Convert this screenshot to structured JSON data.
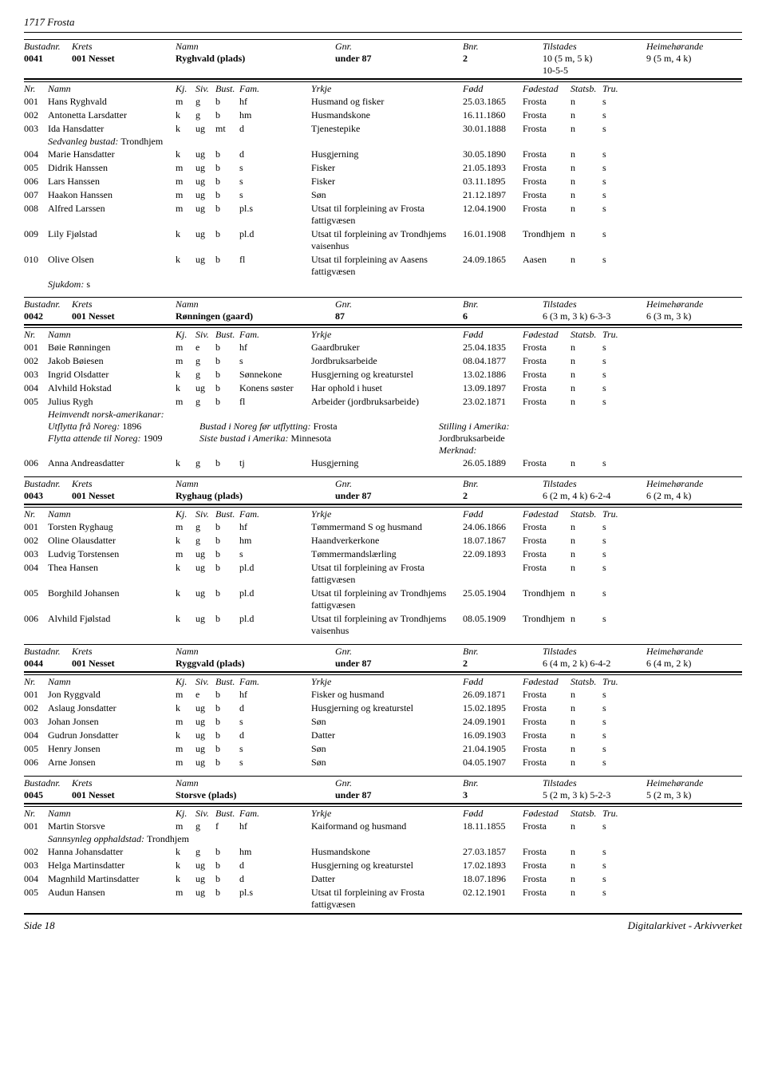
{
  "page_title": "1717 Frosta",
  "footer_left": "Side 18",
  "footer_right": "Digitalarkivet - Arkivverket",
  "bustad_header": [
    "Bustadnr.",
    "Krets",
    "Namn",
    "Gnr.",
    "Bnr.",
    "Tilstades",
    "Heimehørande"
  ],
  "person_header": [
    "Nr.",
    "Namn",
    "Kj.",
    "Siv.",
    "Bust.",
    "Fam.",
    "Yrkje",
    "Fødd",
    "Fødestad",
    "Statsb.",
    "Tru."
  ],
  "sjukdom_label": "Sjukdom:",
  "sjukdom_val": "s",
  "sedvanleg_label": "Sedvanleg bustad:",
  "sedvanleg_val": "Trondhjem",
  "sannsynleg_label": "Sannsynleg opphaldstad:",
  "sannsynleg_val": "Trondhjem",
  "emigrant_labels": {
    "heimvendt": "Heimvendt norsk-amerikanar:",
    "utflytta": "Utflytta frå Noreg:",
    "utflytta_val": "1896",
    "bustad_før": "Bustad i Noreg før utflytting:",
    "bustad_før_val": "Frosta",
    "stilling": "Stilling i Amerika:",
    "flytta": "Flytta attende til Noreg:",
    "flytta_val": "1909",
    "siste": "Siste bustad i Amerika:",
    "siste_val": "Minnesota",
    "jordbruk": "Jordbruksarbeide",
    "merknad": "Merknad:"
  },
  "sections": [
    {
      "bustad": [
        "0041",
        "001 Nesset",
        "Ryghvald (plads)",
        "under 87",
        "2",
        "10 (5 m, 5 k)",
        "9 (5 m, 4 k)"
      ],
      "bustad2": [
        "",
        "",
        "",
        "",
        "",
        "10-5-5",
        ""
      ],
      "persons": [
        [
          "001",
          "Hans Ryghvald",
          "m",
          "g",
          "b",
          "hf",
          "Husmand og fisker",
          "25.03.1865",
          "Frosta",
          "n",
          "s"
        ],
        [
          "002",
          "Antonetta Larsdatter",
          "k",
          "g",
          "b",
          "hm",
          "Husmandskone",
          "16.11.1860",
          "Frosta",
          "n",
          "s"
        ],
        [
          "003",
          "Ida Hansdatter",
          "k",
          "ug",
          "mt",
          "d",
          "Tjenestepike",
          "30.01.1888",
          "Frosta",
          "n",
          "s"
        ],
        [
          "",
          "__SEDVANLEG__",
          "",
          "",
          "",
          "",
          "",
          "",
          "",
          "",
          ""
        ],
        [
          "004",
          "Marie Hansdatter",
          "k",
          "ug",
          "b",
          "d",
          "Husgjerning",
          "30.05.1890",
          "Frosta",
          "n",
          "s"
        ],
        [
          "005",
          "Didrik Hanssen",
          "m",
          "ug",
          "b",
          "s",
          "Fisker",
          "21.05.1893",
          "Frosta",
          "n",
          "s"
        ],
        [
          "006",
          "Lars Hanssen",
          "m",
          "ug",
          "b",
          "s",
          "Fisker",
          "03.11.1895",
          "Frosta",
          "n",
          "s"
        ],
        [
          "007",
          "Haakon Hanssen",
          "m",
          "ug",
          "b",
          "s",
          "Søn",
          "21.12.1897",
          "Frosta",
          "n",
          "s"
        ],
        [
          "008",
          "Alfred Larssen",
          "m",
          "ug",
          "b",
          "pl.s",
          "Utsat til forpleining av Frosta fattigvæsen",
          "12.04.1900",
          "Frosta",
          "n",
          "s"
        ],
        [
          "009",
          "Lily Fjølstad",
          "k",
          "ug",
          "b",
          "pl.d",
          "Utsat til forpleining av Trondhjems vaisenhus",
          "16.01.1908",
          "Trondhjem",
          "n",
          "s"
        ],
        [
          "010",
          "Olive Olsen",
          "k",
          "ug",
          "b",
          "fl",
          "Utsat til forpleining av Aasens fattigvæsen",
          "24.09.1865",
          "Aasen",
          "n",
          "s"
        ]
      ],
      "sjukdom": true
    },
    {
      "bustad": [
        "0042",
        "001 Nesset",
        "Rønningen (gaard)",
        "87",
        "6",
        "6 (3 m, 3 k) 6-3-3",
        "6 (3 m, 3 k)"
      ],
      "persons": [
        [
          "001",
          "Bøie Rønningen",
          "m",
          "e",
          "b",
          "hf",
          "Gaardbruker",
          "25.04.1835",
          "Frosta",
          "n",
          "s"
        ],
        [
          "002",
          "Jakob Bøiesen",
          "m",
          "g",
          "b",
          "s",
          "Jordbruksarbeide",
          "08.04.1877",
          "Frosta",
          "n",
          "s"
        ],
        [
          "003",
          "Ingrid Olsdatter",
          "k",
          "g",
          "b",
          "Sønnekone",
          "Husgjerning og kreaturstel",
          "13.02.1886",
          "Frosta",
          "n",
          "s"
        ],
        [
          "004",
          "Alvhild Hokstad",
          "k",
          "ug",
          "b",
          "Konens søster",
          "Har ophold i huset",
          "13.09.1897",
          "Frosta",
          "n",
          "s"
        ],
        [
          "005",
          "Julius Rygh",
          "m",
          "g",
          "b",
          "fl",
          "Arbeider (jordbruksarbeide)",
          "23.02.1871",
          "Frosta",
          "n",
          "s"
        ]
      ],
      "emigrant": true,
      "persons2": [
        [
          "006",
          "Anna Andreasdatter",
          "k",
          "g",
          "b",
          "tj",
          "Husgjerning",
          "26.05.1889",
          "Frosta",
          "n",
          "s"
        ]
      ]
    },
    {
      "bustad": [
        "0043",
        "001 Nesset",
        "Ryghaug (plads)",
        "under 87",
        "2",
        "6 (2 m, 4 k) 6-2-4",
        "6 (2 m, 4 k)"
      ],
      "persons": [
        [
          "001",
          "Torsten Ryghaug",
          "m",
          "g",
          "b",
          "hf",
          "Tømmermand S og husmand",
          "24.06.1866",
          "Frosta",
          "n",
          "s"
        ],
        [
          "002",
          "Oline Olausdatter",
          "k",
          "g",
          "b",
          "hm",
          "Haandverkerkone",
          "18.07.1867",
          "Frosta",
          "n",
          "s"
        ],
        [
          "003",
          "Ludvig Torstensen",
          "m",
          "ug",
          "b",
          "s",
          "Tømmermandslærling",
          "22.09.1893",
          "Frosta",
          "n",
          "s"
        ],
        [
          "004",
          "Thea Hansen",
          "k",
          "ug",
          "b",
          "pl.d",
          "Utsat til forpleining av Frosta fattigvæsen",
          "",
          "Frosta",
          "n",
          "s"
        ],
        [
          "005",
          "Borghild Johansen",
          "k",
          "ug",
          "b",
          "pl.d",
          "Utsat til forpleining av Trondhjems fattigvæsen",
          "25.05.1904",
          "Trondhjem",
          "n",
          "s"
        ],
        [
          "006",
          "Alvhild Fjølstad",
          "k",
          "ug",
          "b",
          "pl.d",
          "Utsat til forpleining av Trondhjems vaisenhus",
          "08.05.1909",
          "Trondhjem",
          "n",
          "s"
        ]
      ]
    },
    {
      "bustad": [
        "0044",
        "001 Nesset",
        "Ryggvald (plads)",
        "under 87",
        "2",
        "6 (4 m, 2 k) 6-4-2",
        "6 (4 m, 2 k)"
      ],
      "persons": [
        [
          "001",
          "Jon Ryggvald",
          "m",
          "e",
          "b",
          "hf",
          "Fisker og husmand",
          "26.09.1871",
          "Frosta",
          "n",
          "s"
        ],
        [
          "002",
          "Aslaug Jonsdatter",
          "k",
          "ug",
          "b",
          "d",
          "Husgjerning og kreaturstel",
          "15.02.1895",
          "Frosta",
          "n",
          "s"
        ],
        [
          "003",
          "Johan Jonsen",
          "m",
          "ug",
          "b",
          "s",
          "Søn",
          "24.09.1901",
          "Frosta",
          "n",
          "s"
        ],
        [
          "004",
          "Gudrun Jonsdatter",
          "k",
          "ug",
          "b",
          "d",
          "Datter",
          "16.09.1903",
          "Frosta",
          "n",
          "s"
        ],
        [
          "005",
          "Henry Jonsen",
          "m",
          "ug",
          "b",
          "s",
          "Søn",
          "21.04.1905",
          "Frosta",
          "n",
          "s"
        ],
        [
          "006",
          "Arne Jonsen",
          "m",
          "ug",
          "b",
          "s",
          "Søn",
          "04.05.1907",
          "Frosta",
          "n",
          "s"
        ]
      ]
    },
    {
      "bustad": [
        "0045",
        "001 Nesset",
        "Storsve (plads)",
        "under 87",
        "3",
        "5 (2 m, 3 k) 5-2-3",
        "5 (2 m, 3 k)"
      ],
      "persons": [
        [
          "001",
          "Martin Storsve",
          "m",
          "g",
          "f",
          "hf",
          "Kaiformand og husmand",
          "18.11.1855",
          "Frosta",
          "n",
          "s"
        ],
        [
          "",
          "__SANNSYNLEG__",
          "",
          "",
          "",
          "",
          "",
          "",
          "",
          "",
          ""
        ],
        [
          "002",
          "Hanna Johansdatter",
          "k",
          "g",
          "b",
          "hm",
          "Husmandskone",
          "27.03.1857",
          "Frosta",
          "n",
          "s"
        ],
        [
          "003",
          "Helga Martinsdatter",
          "k",
          "ug",
          "b",
          "d",
          "Husgjerning og kreaturstel",
          "17.02.1893",
          "Frosta",
          "n",
          "s"
        ],
        [
          "004",
          "Magnhild Martinsdatter",
          "k",
          "ug",
          "b",
          "d",
          "Datter",
          "18.07.1896",
          "Frosta",
          "n",
          "s"
        ],
        [
          "005",
          "Audun Hansen",
          "m",
          "ug",
          "b",
          "pl.s",
          "Utsat til forpleining av Frosta fattigvæsen",
          "02.12.1901",
          "Frosta",
          "n",
          "s"
        ]
      ]
    }
  ]
}
